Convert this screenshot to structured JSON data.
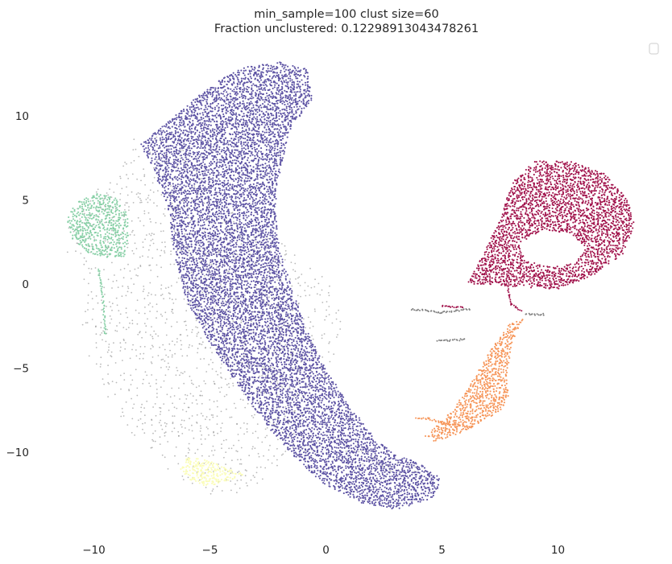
{
  "chart_data": {
    "type": "scatter",
    "title": "min_sample=100 clust size=60",
    "subtitle": "Fraction unclustered: 0.12298913043478261",
    "xlabel": "",
    "ylabel": "",
    "xlim": [
      -12,
      14
    ],
    "ylim": [
      -14.5,
      15
    ],
    "xticks": [
      -10,
      -5,
      0,
      5,
      10
    ],
    "yticks": [
      -10,
      -5,
      0,
      5,
      10
    ],
    "xtick_labels": [
      "−10",
      "−5",
      "0",
      "5",
      "10"
    ],
    "ytick_labels": [
      "−10",
      "−5",
      "0",
      "5",
      "10"
    ],
    "grid": false,
    "legend": {
      "location": "top-right",
      "entries": []
    },
    "series": [
      {
        "color": "#5c52a3",
        "density": 0.7,
        "outline": [
          [
            -2.0,
            13.2
          ],
          [
            -0.8,
            12.8
          ],
          [
            -0.6,
            11.0
          ],
          [
            -1.6,
            9.0
          ],
          [
            -2.0,
            6.5
          ],
          [
            -2.2,
            4.5
          ],
          [
            -2.0,
            2.0
          ],
          [
            -1.4,
            -0.5
          ],
          [
            -0.9,
            -2.5
          ],
          [
            -0.2,
            -4.5
          ],
          [
            0.8,
            -6.8
          ],
          [
            2.0,
            -9.0
          ],
          [
            3.0,
            -10.2
          ],
          [
            4.0,
            -10.6
          ],
          [
            5.0,
            -11.6
          ],
          [
            4.6,
            -12.8
          ],
          [
            3.0,
            -13.4
          ],
          [
            1.5,
            -13.0
          ],
          [
            0.0,
            -12.0
          ],
          [
            -1.2,
            -10.5
          ],
          [
            -2.5,
            -8.5
          ],
          [
            -3.8,
            -6.0
          ],
          [
            -5.0,
            -3.5
          ],
          [
            -6.0,
            -1.0
          ],
          [
            -6.5,
            1.5
          ],
          [
            -6.8,
            4.5
          ],
          [
            -7.5,
            7.0
          ],
          [
            -8.0,
            8.3
          ],
          [
            -6.5,
            10.0
          ],
          [
            -5.5,
            11.2
          ],
          [
            -4.5,
            12.2
          ],
          [
            -3.5,
            12.9
          ]
        ],
        "streaks": []
      },
      {
        "color": "#a0114a",
        "density": 0.75,
        "outline": [
          [
            6.1,
            0.0
          ],
          [
            6.8,
            1.8
          ],
          [
            7.6,
            4.2
          ],
          [
            8.0,
            6.0
          ],
          [
            9.0,
            7.3
          ],
          [
            10.5,
            7.3
          ],
          [
            12.0,
            6.6
          ],
          [
            13.0,
            5.0
          ],
          [
            13.3,
            3.5
          ],
          [
            12.8,
            1.8
          ],
          [
            11.5,
            0.5
          ],
          [
            10.0,
            -0.3
          ],
          [
            8.5,
            -0.2
          ],
          [
            7.0,
            0.0
          ]
        ],
        "hole": [
          [
            9.3,
            3.2
          ],
          [
            10.5,
            3.0
          ],
          [
            11.2,
            2.2
          ],
          [
            10.8,
            1.3
          ],
          [
            9.8,
            1.0
          ],
          [
            8.6,
            1.4
          ],
          [
            8.3,
            2.4
          ]
        ],
        "streaks": [
          [
            [
              7.8,
              0.0
            ],
            [
              8.0,
              -1.2
            ],
            [
              8.4,
              -1.6
            ]
          ],
          [
            [
              5.0,
              -1.3
            ],
            [
              5.9,
              -1.4
            ]
          ]
        ]
      },
      {
        "color": "#f69457",
        "density": 0.7,
        "outline": [
          [
            8.5,
            -2.1
          ],
          [
            8.0,
            -3.6
          ],
          [
            7.8,
            -5.5
          ],
          [
            7.9,
            -6.8
          ],
          [
            7.4,
            -7.7
          ],
          [
            6.3,
            -8.5
          ],
          [
            5.4,
            -9.1
          ],
          [
            4.7,
            -9.4
          ],
          [
            4.2,
            -9.1
          ],
          [
            4.6,
            -8.6
          ],
          [
            5.4,
            -7.6
          ],
          [
            6.2,
            -6.0
          ],
          [
            6.7,
            -4.8
          ],
          [
            7.3,
            -3.5
          ],
          [
            7.9,
            -2.4
          ]
        ],
        "streaks": [
          [
            [
              6.3,
              -8.5
            ],
            [
              5.2,
              -8.3
            ],
            [
              4.4,
              -8.0
            ],
            [
              3.9,
              -8.0
            ]
          ]
        ]
      },
      {
        "color": "#86cfa5",
        "density": 0.6,
        "outline": [
          [
            -10.8,
            4.8
          ],
          [
            -10.0,
            5.4
          ],
          [
            -9.0,
            5.1
          ],
          [
            -8.5,
            4.0
          ],
          [
            -8.5,
            2.7
          ],
          [
            -8.7,
            1.6
          ],
          [
            -9.5,
            1.6
          ],
          [
            -10.3,
            1.9
          ],
          [
            -11.0,
            2.8
          ],
          [
            -11.2,
            3.8
          ]
        ],
        "streaks": [
          [
            [
              -9.6,
              -1.0
            ],
            [
              -9.5,
              -3.0
            ]
          ],
          [
            [
              -9.8,
              0.9
            ],
            [
              -9.6,
              -0.8
            ]
          ]
        ]
      },
      {
        "color": "#fbfdb6",
        "density": 0.75,
        "outline": [
          [
            -6.0,
            -10.3
          ],
          [
            -5.0,
            -10.5
          ],
          [
            -4.2,
            -11.0
          ],
          [
            -3.5,
            -11.3
          ],
          [
            -4.2,
            -11.8
          ],
          [
            -5.2,
            -12.0
          ],
          [
            -5.8,
            -11.7
          ],
          [
            -6.3,
            -11.1
          ]
        ],
        "streaks": []
      },
      {
        "color": "#808080",
        "density": 0.35,
        "outline": [
          [
            -8.6,
            8.6
          ],
          [
            -7.2,
            8.8
          ],
          [
            -5.5,
            7.5
          ],
          [
            -5.0,
            5.8
          ],
          [
            -3.5,
            4.0
          ],
          [
            -1.5,
            2.0
          ],
          [
            -0.4,
            0.8
          ],
          [
            0.6,
            -0.6
          ],
          [
            0.7,
            -3.0
          ],
          [
            0.0,
            -5.5
          ],
          [
            -1.0,
            -7.0
          ],
          [
            -0.8,
            -8.2
          ],
          [
            0.3,
            -9.6
          ],
          [
            1.6,
            -10.9
          ],
          [
            3.5,
            -11.5
          ],
          [
            4.5,
            -11.0
          ],
          [
            2.8,
            -10.5
          ],
          [
            1.0,
            -9.5
          ],
          [
            -1.5,
            -10.2
          ],
          [
            -2.5,
            -11.5
          ],
          [
            -3.5,
            -12.4
          ],
          [
            -5.0,
            -12.5
          ],
          [
            -6.5,
            -11.6
          ],
          [
            -8.0,
            -9.6
          ],
          [
            -9.3,
            -7.0
          ],
          [
            -10.2,
            -4.5
          ],
          [
            -10.6,
            -2.5
          ],
          [
            -10.3,
            0.0
          ],
          [
            -11.2,
            1.8
          ],
          [
            -11.0,
            4.3
          ],
          [
            -10.0,
            5.6
          ],
          [
            -8.8,
            6.5
          ]
        ],
        "streaks": [
          [
            [
              3.7,
              -1.5
            ],
            [
              5.0,
              -1.7
            ],
            [
              6.2,
              -1.5
            ]
          ],
          [
            [
              4.8,
              -3.4
            ],
            [
              6.0,
              -3.3
            ]
          ],
          [
            [
              8.6,
              -1.8
            ],
            [
              9.4,
              -1.8
            ]
          ]
        ]
      }
    ]
  }
}
